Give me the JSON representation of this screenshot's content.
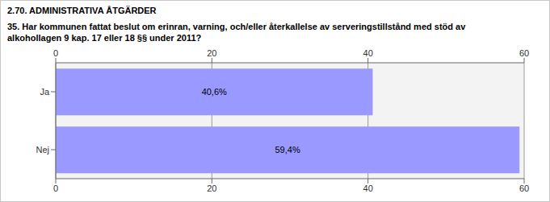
{
  "chart_data": {
    "type": "bar",
    "orientation": "horizontal",
    "title": "2.70. ADMINISTRATIVA ÅTGÄRDER",
    "subtitle": "35. Har kommunen fattat beslut om erinran,  varning, och/eller återkallelse av serveringstillstånd med stöd av alkohollagen 9 kap. 17 eller 18 §§ under 2011?",
    "categories": [
      "Ja",
      "Nej"
    ],
    "values": [
      40.6,
      59.4
    ],
    "value_labels": [
      "40,6%",
      "59,4%"
    ],
    "data_labels": true,
    "color": "#9999ff",
    "xlim": [
      0,
      60
    ],
    "xticks": [
      0,
      20,
      40,
      60
    ],
    "grid": true
  }
}
